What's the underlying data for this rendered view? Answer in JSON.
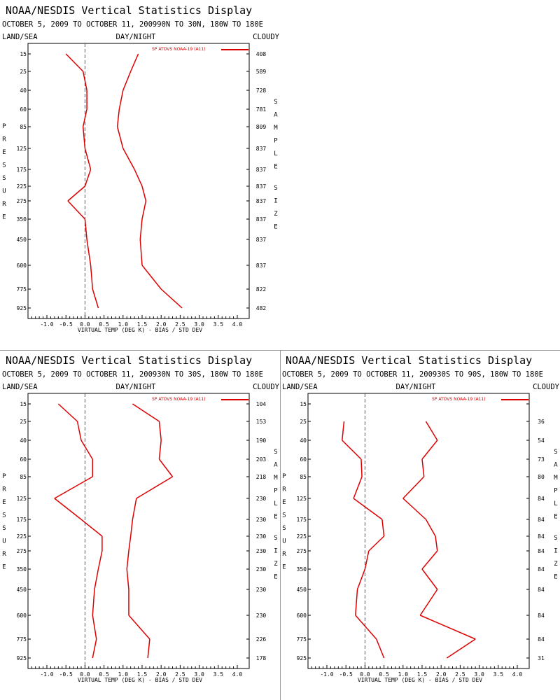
{
  "chart_data": [
    {
      "type": "line",
      "title": "NOAA/NESDIS Vertical Statistics Display",
      "subtitle": "OCTOBER 5, 2009 TO OCTOBER 11, 200990N TO 30N, 180W TO 180E",
      "left_header": "LAND/SEA",
      "center_header": "DAY/NIGHT",
      "right_header": "CLOUDY",
      "xlabel": "VIRTUAL TEMP (DEG K) - BIAS / STD DEV",
      "ylabel": "PRESSURE",
      "right_axis_label": "SAMPLE SIZE",
      "legend_label": "SP ATOVS NOAA-19 (A11)",
      "color": "#dd0000",
      "xlim": [
        -1.5,
        4.0
      ],
      "x_ticks": [
        "-1.0",
        "-0.5",
        "0.0",
        "0.5",
        "1.0",
        "1.5",
        "2.0",
        "2.5",
        "3.0",
        "3.5",
        "4.0"
      ],
      "pressure_levels": [
        "15",
        "25",
        "40",
        "60",
        "85",
        "125",
        "175",
        "225",
        "275",
        "350",
        "450",
        "600",
        "775",
        "925"
      ],
      "sample_size": [
        "408",
        "589",
        "728",
        "781",
        "809",
        "837",
        "837",
        "837",
        "837",
        "837",
        "837",
        "837",
        "822",
        "482"
      ],
      "series": [
        {
          "values": [
            -0.5,
            -0.05,
            0.05,
            0.05,
            -0.05,
            0.0,
            0.15,
            0.0,
            -0.45,
            0.0,
            0.05,
            0.15,
            0.2,
            0.35
          ]
        },
        {
          "values": [
            1.4,
            1.2,
            1.0,
            0.9,
            0.85,
            1.0,
            1.3,
            1.5,
            1.6,
            1.5,
            1.45,
            1.5,
            2.0,
            2.55
          ]
        }
      ]
    },
    {
      "type": "line",
      "title": "NOAA/NESDIS Vertical Statistics Display",
      "subtitle": "OCTOBER 5, 2009 TO OCTOBER 11, 200930N TO 30S, 180W TO 180E",
      "left_header": "LAND/SEA",
      "center_header": "DAY/NIGHT",
      "right_header": "CLOUDY",
      "xlabel": "VIRTUAL TEMP (DEG K) - BIAS / STD DEV",
      "ylabel": "PRESSURE",
      "right_axis_label": "SAMPLE SIZE",
      "legend_label": "SP ATOVS NOAA-19 (A11)",
      "color": "#dd0000",
      "xlim": [
        -1.5,
        4.0
      ],
      "x_ticks": [
        "-1.0",
        "-0.5",
        "0.0",
        "0.5",
        "1.0",
        "1.5",
        "2.0",
        "2.5",
        "3.0",
        "3.5",
        "4.0"
      ],
      "pressure_levels": [
        "15",
        "25",
        "40",
        "60",
        "85",
        "125",
        "175",
        "225",
        "275",
        "350",
        "450",
        "600",
        "775",
        "925"
      ],
      "sample_size": [
        "104",
        "153",
        "190",
        "203",
        "218",
        "230",
        "230",
        "230",
        "230",
        "230",
        "230",
        "230",
        "226",
        "178"
      ],
      "series": [
        {
          "values": [
            -0.7,
            -0.2,
            -0.1,
            0.2,
            0.2,
            -0.8,
            -0.1,
            0.45,
            0.45,
            0.35,
            0.25,
            0.2,
            0.3,
            0.2
          ]
        },
        {
          "values": [
            1.25,
            1.95,
            2.0,
            1.95,
            2.3,
            1.35,
            1.25,
            1.2,
            1.15,
            1.1,
            1.15,
            1.15,
            1.7,
            1.65
          ]
        }
      ]
    },
    {
      "type": "line",
      "title": "NOAA/NESDIS Vertical Statistics Display",
      "subtitle": "OCTOBER 5, 2009 TO OCTOBER 11, 200930S TO 90S, 180W TO 180E",
      "left_header": "LAND/SEA",
      "center_header": "DAY/NIGHT",
      "right_header": "CLOUDY",
      "xlabel": "VIRTUAL TEMP (DEG K) - BIAS / STD DEV",
      "ylabel": "PRESSURE",
      "right_axis_label": "SAMPLE SIZE",
      "legend_label": "SP ATOVS NOAA-19 (A11)",
      "color": "#dd0000",
      "xlim": [
        -1.5,
        4.0
      ],
      "x_ticks": [
        "-1.0",
        "-0.5",
        "0.0",
        "0.5",
        "1.0",
        "1.5",
        "2.0",
        "2.5",
        "3.0",
        "3.5",
        "4.0"
      ],
      "pressure_levels": [
        "15",
        "25",
        "40",
        "60",
        "85",
        "125",
        "175",
        "225",
        "275",
        "350",
        "450",
        "600",
        "775",
        "925"
      ],
      "sample_size": [
        "",
        "36",
        "54",
        "73",
        "80",
        "84",
        "84",
        "84",
        "84",
        "84",
        "84",
        "84",
        "84",
        "31"
      ],
      "series": [
        {
          "values": [
            null,
            -0.55,
            -0.6,
            -0.1,
            -0.08,
            -0.3,
            0.45,
            0.5,
            0.1,
            0.0,
            -0.2,
            -0.25,
            0.3,
            0.5
          ]
        },
        {
          "values": [
            null,
            1.6,
            1.9,
            1.5,
            1.55,
            1.0,
            1.6,
            1.85,
            1.9,
            1.5,
            1.9,
            1.45,
            2.9,
            2.15
          ]
        }
      ]
    }
  ]
}
